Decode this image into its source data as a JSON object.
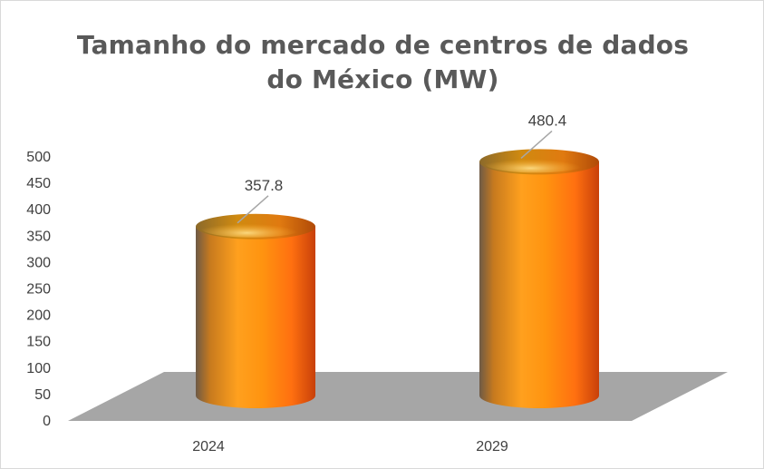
{
  "chart_data": {
    "type": "bar",
    "style": "3d-cylinder",
    "title_lines": [
      "Tamanho do mercado de centros de dados",
      "do México (MW)"
    ],
    "categories": [
      "2024",
      "2029"
    ],
    "values": [
      357.8,
      480.4
    ],
    "data_labels": [
      "357.8",
      "480.4"
    ],
    "ylim": [
      0,
      500
    ],
    "yticks": [
      0,
      50,
      100,
      150,
      200,
      250,
      300,
      350,
      400,
      450,
      500
    ],
    "xlabel": "",
    "ylabel": "",
    "grid": false,
    "legend": "none",
    "colors": {
      "bar_light": "#ffa01e",
      "bar_mid": "#ff8c00",
      "bar_dark": "#e85a0c",
      "bar_shadow": "#7a5a3a",
      "floor": "#a6a6a6",
      "text": "#404040",
      "title": "#595959"
    }
  }
}
